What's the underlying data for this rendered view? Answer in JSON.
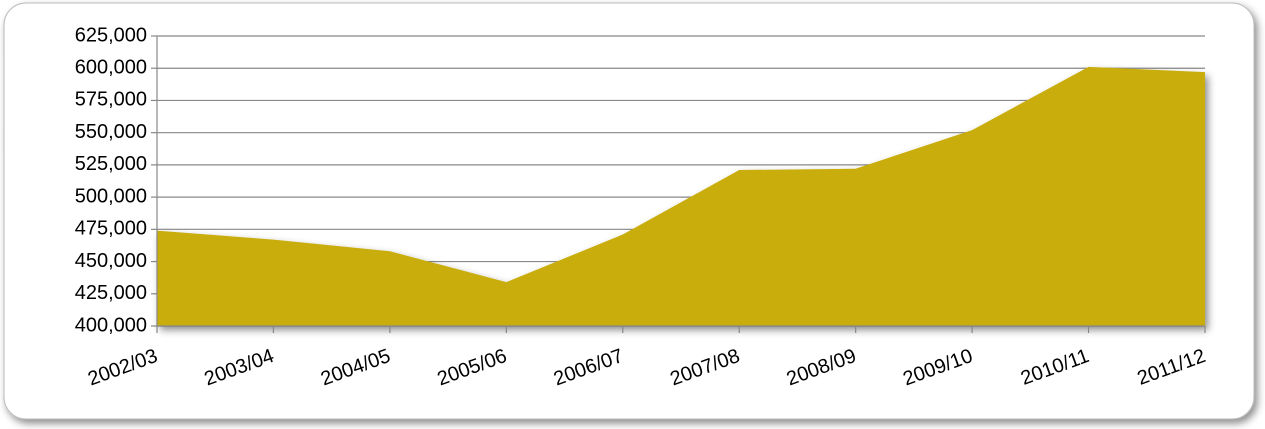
{
  "chart_data": {
    "type": "area",
    "categories": [
      "2002/03",
      "2003/04",
      "2004/05",
      "2005/06",
      "2006/07",
      "2007/08",
      "2008/09",
      "2009/10",
      "2010/11",
      "2011/12"
    ],
    "values": [
      474000,
      467000,
      458000,
      434000,
      471000,
      521000,
      522000,
      552000,
      601000,
      597000
    ],
    "color": "#c9ad0c",
    "ylim": [
      400000,
      625000
    ],
    "yticks": [
      {
        "value": 400000,
        "label": "400,000"
      },
      {
        "value": 425000,
        "label": "425,000"
      },
      {
        "value": 450000,
        "label": "450,000"
      },
      {
        "value": 475000,
        "label": "475,000"
      },
      {
        "value": 500000,
        "label": "500,000"
      },
      {
        "value": 525000,
        "label": "525,000"
      },
      {
        "value": 550000,
        "label": "550,000"
      },
      {
        "value": 575000,
        "label": "575,000"
      },
      {
        "value": 600000,
        "label": "600,000"
      },
      {
        "value": 625000,
        "label": "625,000"
      }
    ],
    "grid": true
  }
}
